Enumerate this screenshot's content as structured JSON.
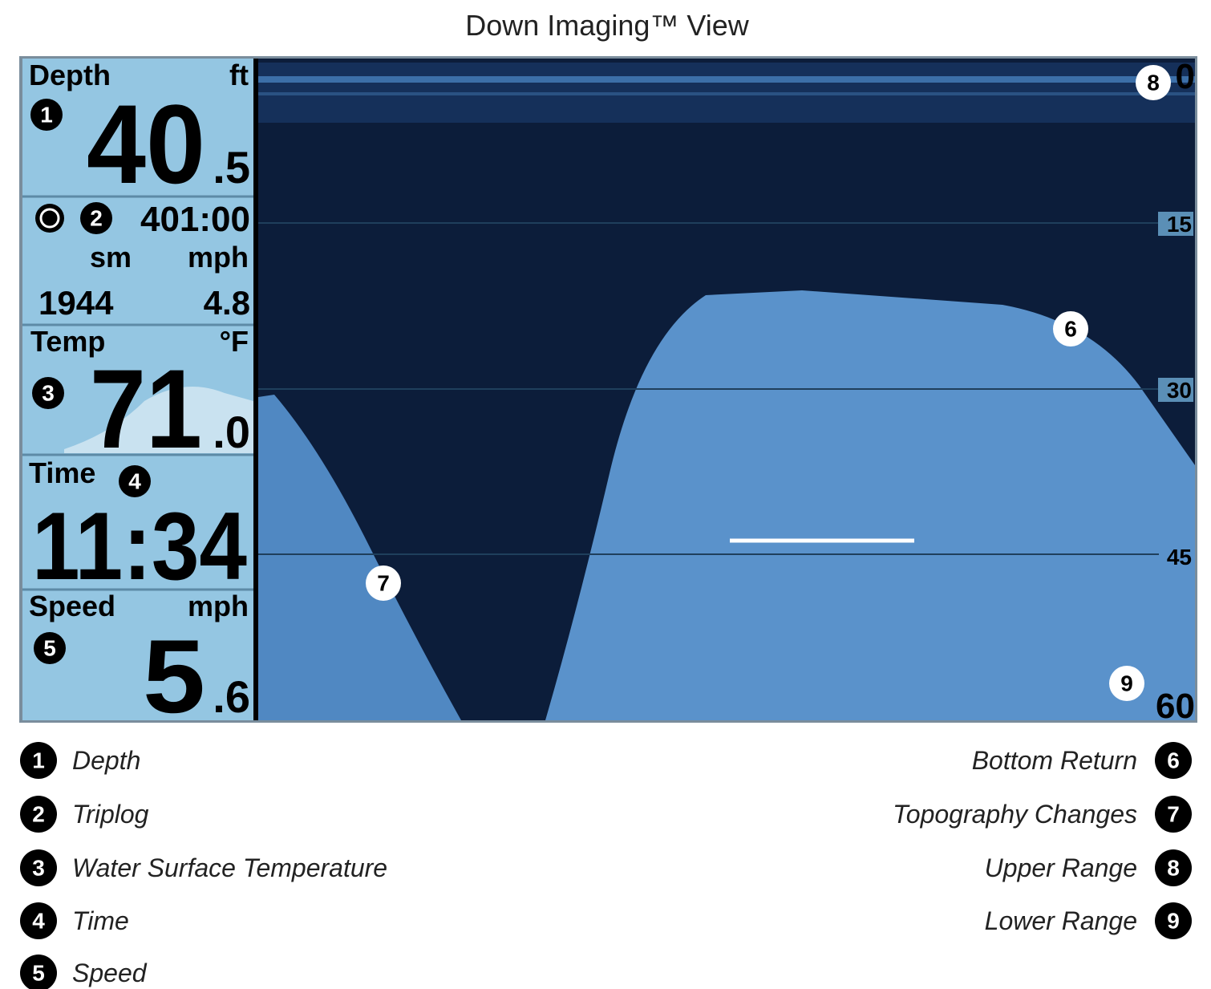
{
  "title": "Down Imaging™ View",
  "panel": {
    "depth": {
      "label": "Depth",
      "unit": "ft",
      "whole": "40",
      "fraction": ".5"
    },
    "triplog": {
      "time": "401:00",
      "distance_unit": "sm",
      "speed_unit": "mph",
      "distance": "1944",
      "speed": "4.8"
    },
    "temp": {
      "label": "Temp",
      "unit": "°F",
      "whole": "71",
      "fraction": ".0"
    },
    "time": {
      "label": "Time",
      "value": "11:34"
    },
    "speed": {
      "label": "Speed",
      "unit": "mph",
      "whole": "5",
      "fraction": ".6"
    }
  },
  "scale": [
    "0",
    "15",
    "30",
    "45",
    "60"
  ],
  "callouts": [
    {
      "number": "1",
      "label": "Depth"
    },
    {
      "number": "2",
      "label": "Triplog"
    },
    {
      "number": "3",
      "label": "Water Surface Temperature"
    },
    {
      "number": "4",
      "label": "Time"
    },
    {
      "number": "5",
      "label": "Speed"
    },
    {
      "number": "6",
      "label": "Bottom Return"
    },
    {
      "number": "7",
      "label": "Topography Changes"
    },
    {
      "number": "8",
      "label": "Upper Range"
    },
    {
      "number": "9",
      "label": "Lower Range"
    }
  ]
}
